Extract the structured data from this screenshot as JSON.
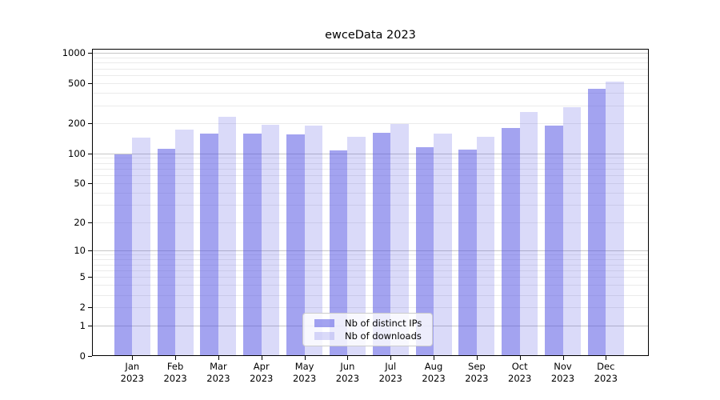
{
  "title": "ewceData 2023",
  "colors": {
    "bar_distinct_ips": "rgba(88,88,228,0.55)",
    "bar_downloads": "rgba(88,88,228,0.22)",
    "grid_major": "#c6c6c6",
    "grid_minor": "#ebebeb",
    "axis": "#000000",
    "legend_border": "#cccccc"
  },
  "chart_data": {
    "type": "bar",
    "title": "ewceData 2023",
    "months": [
      "Jan",
      "Feb",
      "Mar",
      "Apr",
      "May",
      "Jun",
      "Jul",
      "Aug",
      "Sep",
      "Oct",
      "Nov",
      "Dec"
    ],
    "year_label": "2023",
    "series": [
      {
        "name": "Nb of distinct IPs",
        "values": [
          97,
          112,
          157,
          159,
          155,
          107,
          162,
          115,
          109,
          180,
          190,
          440
        ]
      },
      {
        "name": "Nb of downloads",
        "values": [
          144,
          172,
          233,
          194,
          191,
          146,
          196,
          159,
          147,
          259,
          288,
          518
        ]
      }
    ],
    "yscale": "log1p",
    "ylim": [
      0,
      1080
    ],
    "yticks": [
      1000,
      500,
      200,
      100,
      50,
      20,
      10,
      5,
      2,
      1,
      0
    ],
    "major_gridlines": [
      1,
      10,
      100,
      1000
    ],
    "minor_gridlines": [
      2,
      3,
      4,
      5,
      6,
      7,
      8,
      9,
      20,
      30,
      40,
      50,
      60,
      70,
      80,
      90,
      200,
      300,
      400,
      500,
      600,
      700,
      800,
      900
    ],
    "grid": "both",
    "legend_position": "lower center"
  }
}
